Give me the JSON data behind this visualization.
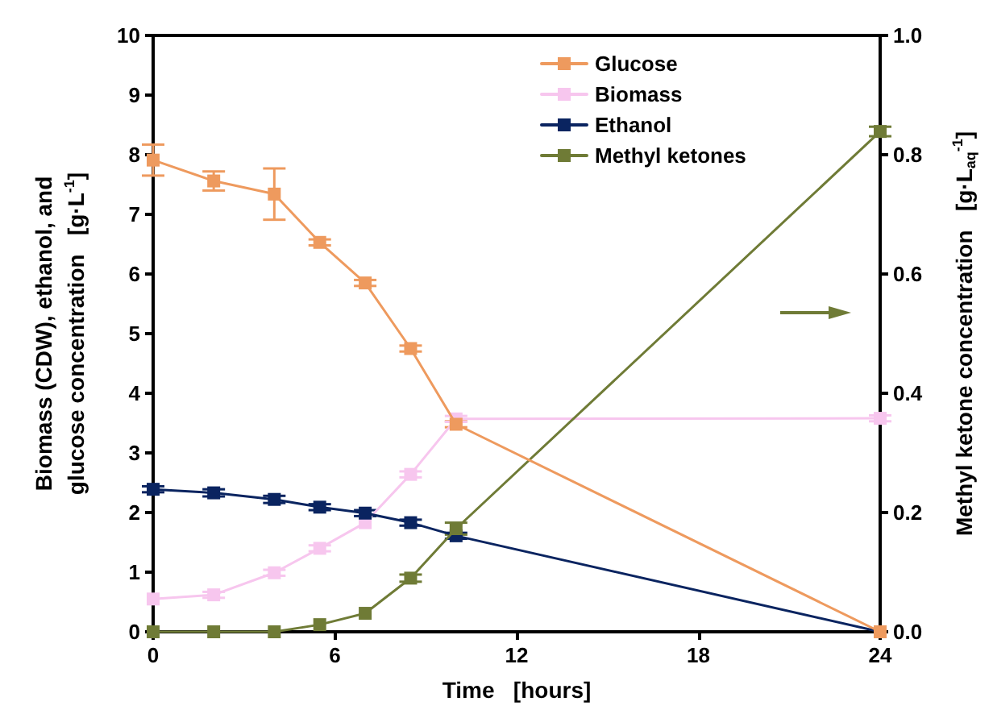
{
  "chart_data": {
    "type": "line",
    "xlabel": "Time   [hours]",
    "ylabel": "Biomass (CDW), ethanol, and\nglucose concentration   [g·L$^{-1}$]",
    "y2label": "Methyl ketone concentration   [g·L$_{aq}$$^{-1}$]",
    "x": [
      0,
      2,
      4,
      5.5,
      7,
      8.5,
      10,
      24
    ],
    "series": [
      {
        "name": "Glucose",
        "color": "#ee9a5e",
        "values": [
          7.91,
          7.56,
          7.34,
          6.53,
          5.85,
          4.75,
          3.48,
          0
        ],
        "errors": [
          0.26,
          0.16,
          0.43,
          0.05,
          0.05,
          0.05,
          0.05,
          null
        ]
      },
      {
        "name": "Biomass",
        "color": "#f7c6ee",
        "values": [
          0.55,
          0.62,
          0.99,
          1.4,
          1.83,
          2.64,
          3.57,
          3.58
        ],
        "errors": [
          null,
          0.05,
          0.05,
          0.05,
          null,
          0.05,
          0.05,
          0.05
        ]
      },
      {
        "name": "Ethanol",
        "color": "#0a2460",
        "values": [
          2.39,
          2.33,
          2.22,
          2.09,
          1.99,
          1.83,
          1.61,
          0
        ],
        "errors": [
          0.05,
          0.06,
          0.06,
          0.05,
          0.05,
          0.05,
          0.05,
          null
        ]
      },
      {
        "name": "Methyl ketones",
        "color": "#6f7b36",
        "axis": "y2",
        "values": [
          0,
          0,
          0,
          0.012,
          0.031,
          0.09,
          0.173,
          0.839
        ],
        "errors": [
          null,
          null,
          null,
          null,
          null,
          0.006,
          0.01,
          0.008
        ]
      }
    ],
    "xlim": [
      0,
      24
    ],
    "xticks": [
      0,
      6,
      12,
      18,
      24
    ],
    "ylim": [
      0,
      10
    ],
    "yticks": [
      0,
      1,
      2,
      3,
      4,
      5,
      6,
      7,
      8,
      9,
      10
    ],
    "y2lim": [
      0,
      1
    ],
    "y2ticks": [
      {
        "value": 0,
        "label": "0.0"
      },
      0.2,
      0.4,
      0.6,
      0.8,
      {
        "value": 1,
        "label": "1.0"
      }
    ],
    "marker": "square",
    "line_style": "solid",
    "legend": "top right",
    "grid": false
  }
}
